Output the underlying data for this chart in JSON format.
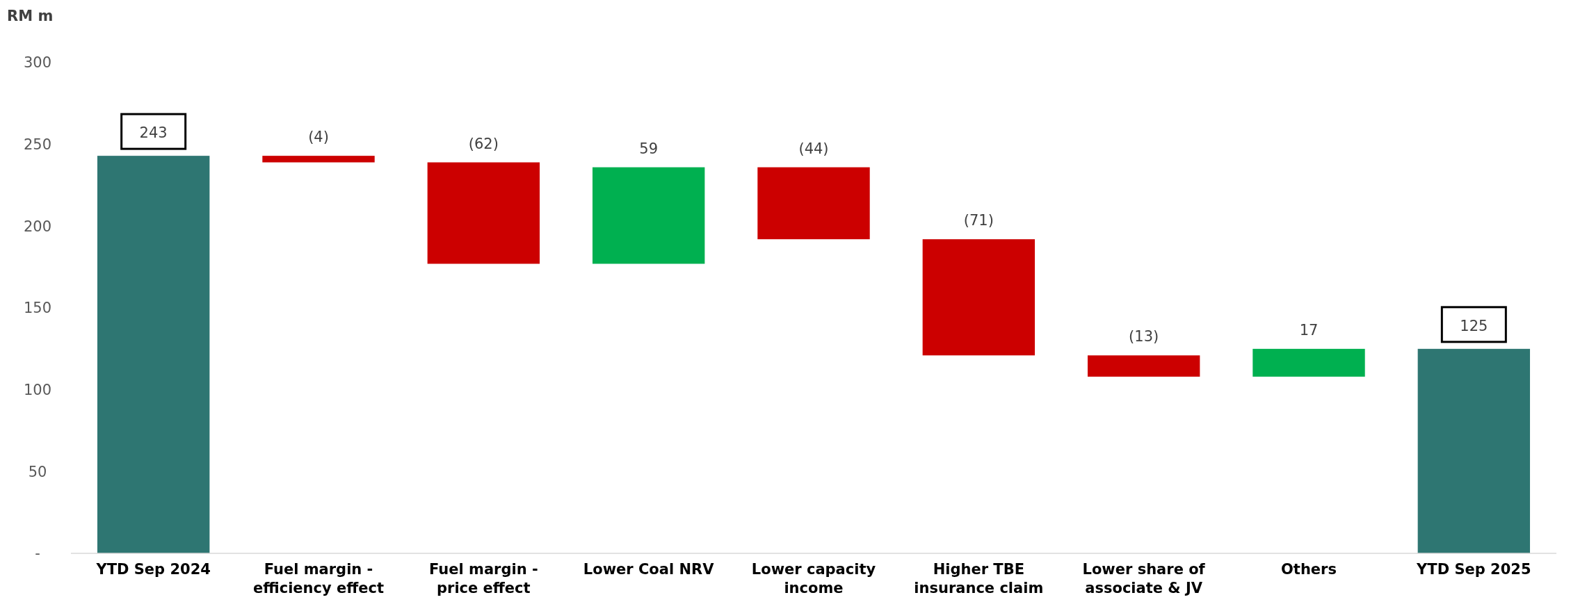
{
  "chart_data": {
    "type": "bar",
    "ylabel": "RM m",
    "categories": [
      "YTD Sep 2024",
      "Fuel margin - efficiency effect",
      "Fuel margin - price effect",
      "Lower Coal NRV",
      "Lower capacity income",
      "Higher TBE insurance claim",
      "Lower share of associate & JV",
      "Others",
      "YTD Sep 2025"
    ],
    "values": [
      243,
      -4,
      -62,
      59,
      -44,
      -71,
      -13,
      17,
      125
    ],
    "base": [
      0,
      243,
      239,
      177,
      236,
      192,
      121,
      108,
      0
    ],
    "colors": [
      "#2e7672",
      "#cc0000",
      "#cc0000",
      "#00b050",
      "#cc0000",
      "#cc0000",
      "#cc0000",
      "#00b050",
      "#2e7672"
    ],
    "value_labels": [
      "243",
      "(4)",
      "(62)",
      "59",
      "(44)",
      "(71)",
      "(13)",
      "17",
      "125"
    ],
    "ylim": [
      0,
      300
    ],
    "yticks": [
      {
        "value": 0,
        "label": "-"
      },
      50,
      100,
      150,
      200,
      250,
      300
    ],
    "grid": false
  }
}
